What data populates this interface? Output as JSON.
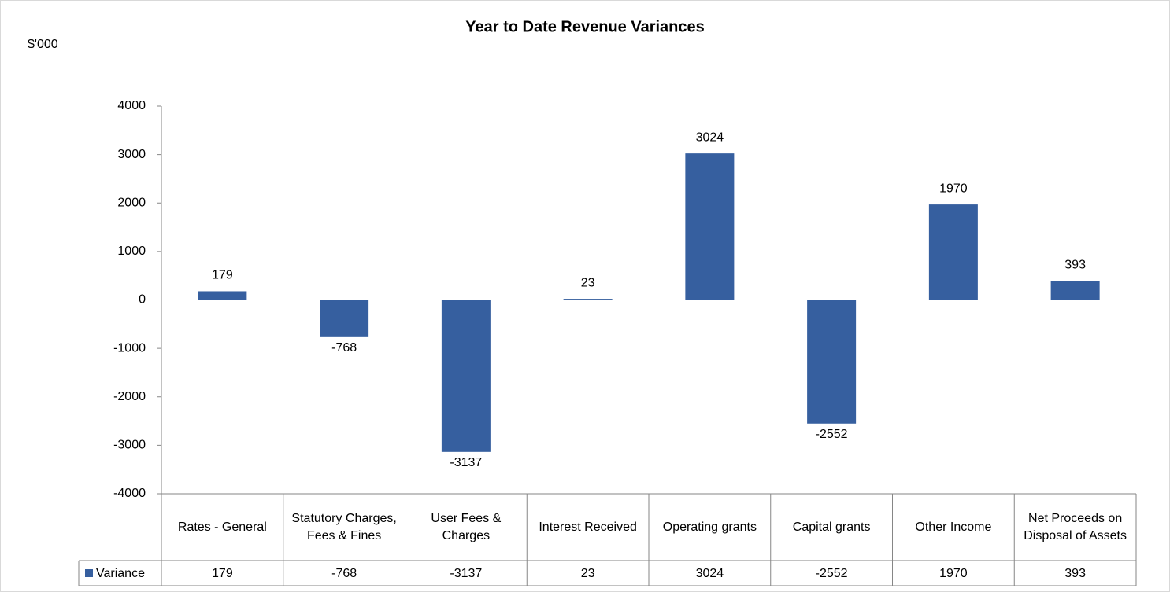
{
  "chart_data": {
    "type": "bar",
    "title": "Year to Date Revenue Variances",
    "y_label": "$'000",
    "categories": [
      "Rates - General",
      "Statutory Charges, Fees & Fines",
      "User Fees & Charges",
      "Interest Received",
      "Operating grants",
      "Capital grants",
      "Other Income",
      "Net Proceeds on Disposal of Assets"
    ],
    "series": [
      {
        "name": "Variance",
        "color": "#365f9f",
        "values": [
          179,
          -768,
          -3137,
          23,
          3024,
          -2552,
          1970,
          393
        ]
      }
    ],
    "ylim": [
      -4000,
      4000
    ],
    "yticks": [
      -4000,
      -3000,
      -2000,
      -1000,
      0,
      1000,
      2000,
      3000,
      4000
    ],
    "grid": false,
    "data_table": true
  }
}
